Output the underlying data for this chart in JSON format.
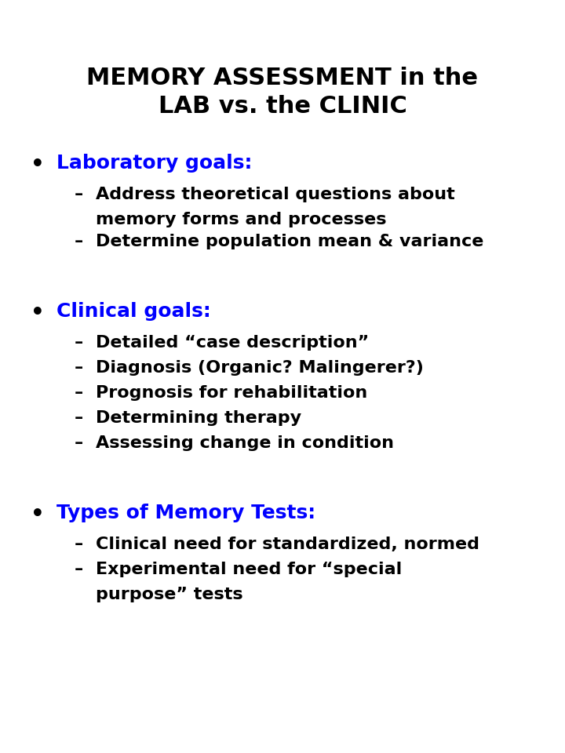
{
  "title_line1": "MEMORY ASSESSMENT in the",
  "title_line2": "LAB vs. the CLINIC",
  "title_color": "#000000",
  "title_fontsize": 22,
  "background_color": "#ffffff",
  "bullet_color": "#000000",
  "heading_color": "#0000ff",
  "subitem_color": "#000000",
  "heading_fontsize": 18,
  "subitem_fontsize": 16,
  "sections": [
    {
      "heading": "Laboratory goals:",
      "subitems": [
        [
          "Address theoretical questions about",
          "memory forms and processes"
        ],
        [
          "Determine population mean & variance"
        ]
      ]
    },
    {
      "heading": "Clinical goals:",
      "subitems": [
        [
          "Detailed “case description”"
        ],
        [
          "Diagnosis (Organic? Malingerer?)"
        ],
        [
          "Prognosis for rehabilitation"
        ],
        [
          "Determining therapy"
        ],
        [
          "Assessing change in condition"
        ]
      ]
    },
    {
      "heading": "Types of Memory Tests:",
      "subitems": [
        [
          "Clinical need for standardized, normed"
        ],
        [
          "Experimental need for “special",
          "purpose” tests"
        ]
      ]
    }
  ]
}
